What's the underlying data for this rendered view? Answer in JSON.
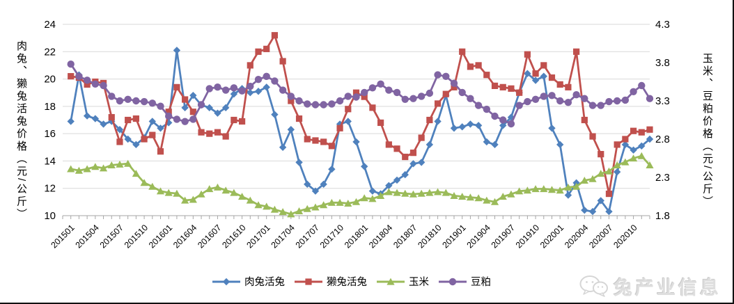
{
  "watermark": {
    "text": "兔产业信息",
    "icon": "wechat-icon"
  },
  "chart_data": {
    "type": "line",
    "title": "",
    "grid": true,
    "legend_position": "bottom",
    "x_label_every": 3,
    "x": [
      "201501",
      "201502",
      "201503",
      "201504",
      "201505",
      "201506",
      "201507",
      "201508",
      "201509",
      "201510",
      "201511",
      "201512",
      "201601",
      "201602",
      "201603",
      "201604",
      "201605",
      "201606",
      "201607",
      "201608",
      "201609",
      "201610",
      "201611",
      "201612",
      "201701",
      "201702",
      "201703",
      "201704",
      "201705",
      "201706",
      "201707",
      "201708",
      "201709",
      "201710",
      "201711",
      "201712",
      "201801",
      "201802",
      "201803",
      "201804",
      "201805",
      "201806",
      "201807",
      "201808",
      "201809",
      "201810",
      "201811",
      "201812",
      "201901",
      "201902",
      "201903",
      "201904",
      "201905",
      "201906",
      "201907",
      "201908",
      "201909",
      "201910",
      "201911",
      "201912",
      "202001",
      "202002",
      "202003",
      "202004",
      "202005",
      "202006",
      "202007",
      "202008",
      "202009",
      "202010",
      "202011",
      "202012"
    ],
    "left_axis": {
      "title": "肉兔、獭兔活兔价格（元/公斤）",
      "min": 10,
      "max": 24,
      "tick_labels": [
        "10",
        "12",
        "14",
        "16",
        "18",
        "20",
        "22",
        "24"
      ]
    },
    "right_axis": {
      "title": "玉米、豆粕价格（元/公斤）",
      "min": 1.8,
      "max": 4.3,
      "tick_labels": [
        "1.8",
        "2.3",
        "2.8",
        "3.3",
        "3.8",
        "4.3"
      ]
    },
    "series": [
      {
        "name": "肉兔活兔",
        "color": "#4F81BD",
        "marker": "diamond",
        "axis": "left",
        "values": [
          16.9,
          20.3,
          17.3,
          17.1,
          16.7,
          16.9,
          16.3,
          15.6,
          15.2,
          15.7,
          16.9,
          16.4,
          16.8,
          22.1,
          17.9,
          18.8,
          18.1,
          17.9,
          17.5,
          17.9,
          18.9,
          19.3,
          19.0,
          19.1,
          19.4,
          17.4,
          15.0,
          16.3,
          13.9,
          12.3,
          11.8,
          12.3,
          13.4,
          16.7,
          16.9,
          15.4,
          13.6,
          11.8,
          11.6,
          12.2,
          12.6,
          13.0,
          13.8,
          13.9,
          15.2,
          16.9,
          18.8,
          16.4,
          16.5,
          16.7,
          16.6,
          15.4,
          15.2,
          16.6,
          17.2,
          19.0,
          20.4,
          19.9,
          20.2,
          16.4,
          15.2,
          11.5,
          12.4,
          10.4,
          10.3,
          11.1,
          10.3,
          13.2,
          15.2,
          14.8,
          15.1,
          15.6
        ]
      },
      {
        "name": "獭兔活兔",
        "color": "#C0504D",
        "marker": "square",
        "axis": "left",
        "values": [
          20.2,
          20.1,
          19.6,
          19.8,
          19.7,
          17.2,
          15.4,
          17.0,
          17.1,
          15.6,
          15.9,
          14.7,
          17.6,
          19.4,
          18.5,
          17.6,
          16.1,
          16.0,
          16.1,
          15.8,
          17.0,
          16.9,
          21.0,
          22.0,
          22.2,
          23.2,
          21.3,
          18.4,
          17.1,
          15.6,
          15.5,
          15.4,
          15.1,
          16.4,
          17.8,
          19.0,
          18.7,
          17.9,
          16.8,
          15.2,
          14.9,
          14.3,
          14.6,
          15.7,
          17.0,
          18.2,
          18.9,
          19.4,
          22.0,
          20.9,
          21.0,
          20.3,
          19.5,
          19.4,
          19.3,
          19.0,
          21.8,
          20.4,
          21.0,
          20.1,
          19.6,
          19.4,
          22.0,
          17.0,
          15.8,
          14.5,
          11.6,
          15.2,
          15.6,
          16.2,
          16.1,
          16.3
        ]
      },
      {
        "name": "玉米",
        "color": "#9BBB59",
        "marker": "triangle",
        "axis": "right",
        "values": [
          2.41,
          2.39,
          2.41,
          2.44,
          2.42,
          2.46,
          2.47,
          2.48,
          2.35,
          2.23,
          2.18,
          2.12,
          2.1,
          2.09,
          2.0,
          2.01,
          2.08,
          2.15,
          2.17,
          2.13,
          2.1,
          2.05,
          2.0,
          1.94,
          1.92,
          1.88,
          1.85,
          1.82,
          1.86,
          1.89,
          1.91,
          1.94,
          1.97,
          1.97,
          1.96,
          1.98,
          2.03,
          2.02,
          2.06,
          2.11,
          2.1,
          2.09,
          2.08,
          2.09,
          2.1,
          2.11,
          2.1,
          2.06,
          2.05,
          2.04,
          2.03,
          2.0,
          1.98,
          2.05,
          2.08,
          2.12,
          2.13,
          2.15,
          2.15,
          2.14,
          2.13,
          2.17,
          2.18,
          2.26,
          2.28,
          2.35,
          2.38,
          2.46,
          2.5,
          2.55,
          2.58,
          2.46
        ]
      },
      {
        "name": "豆粕",
        "color": "#8064A2",
        "marker": "circle",
        "axis": "right",
        "values": [
          3.78,
          3.62,
          3.57,
          3.52,
          3.5,
          3.36,
          3.3,
          3.32,
          3.3,
          3.29,
          3.27,
          3.23,
          3.1,
          3.06,
          3.03,
          3.06,
          3.25,
          3.46,
          3.48,
          3.44,
          3.47,
          3.43,
          3.49,
          3.58,
          3.62,
          3.56,
          3.44,
          3.36,
          3.3,
          3.26,
          3.25,
          3.25,
          3.26,
          3.3,
          3.36,
          3.35,
          3.41,
          3.47,
          3.52,
          3.44,
          3.41,
          3.32,
          3.33,
          3.36,
          3.4,
          3.64,
          3.62,
          3.53,
          3.41,
          3.33,
          3.24,
          3.19,
          3.1,
          3.05,
          3.0,
          3.24,
          3.29,
          3.32,
          3.36,
          3.37,
          3.3,
          3.28,
          3.38,
          3.33,
          3.24,
          3.24,
          3.29,
          3.3,
          3.31,
          3.42,
          3.5,
          3.33
        ]
      }
    ]
  }
}
